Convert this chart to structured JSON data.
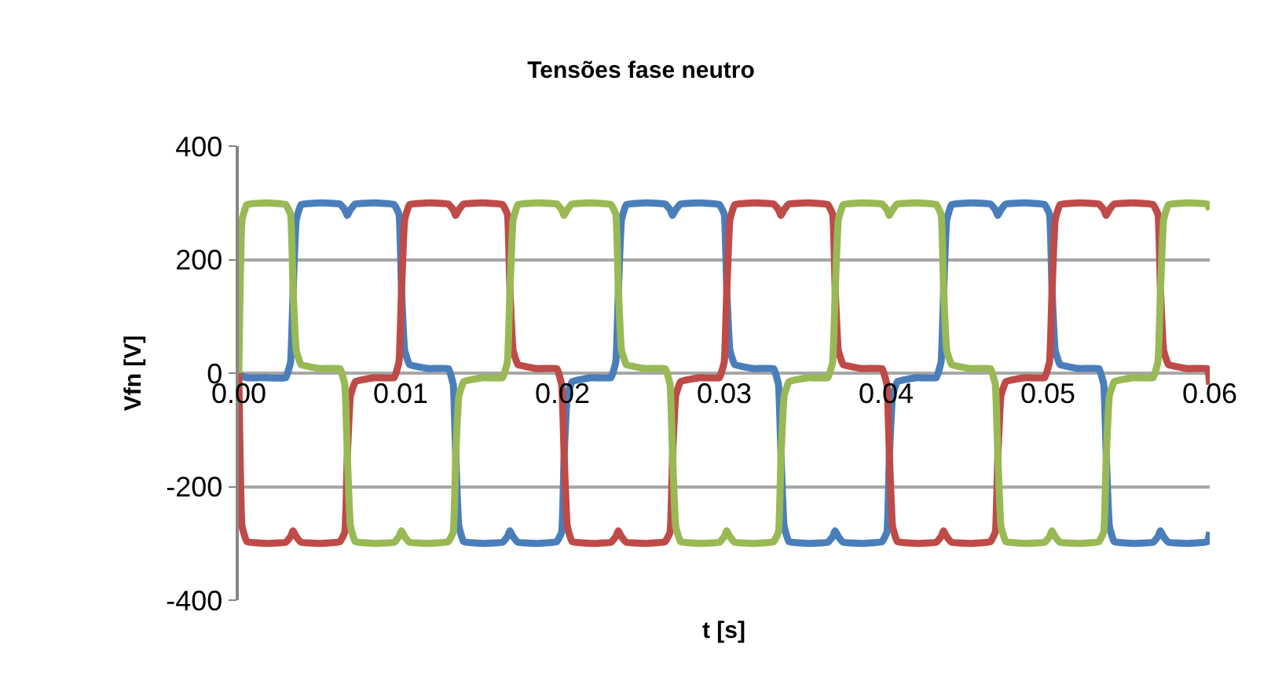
{
  "chart_data": {
    "type": "line",
    "title": "Tensões fase neutro",
    "xlabel": "t [s]",
    "ylabel": "Vfn [V]",
    "x": [
      0,
      0.0002,
      0.0005,
      0.0017,
      0.0029,
      0.0032,
      0.00335,
      0.00355,
      0.00385,
      0.00505,
      0.00625,
      0.00655,
      0.0067,
      0.0069,
      0.0072,
      0.0084,
      0.0096,
      0.0099,
      0.01005,
      0.01025,
      0.01055,
      0.01175,
      0.01295,
      0.01325,
      0.0134,
      0.0136,
      0.0139,
      0.0151,
      0.0163,
      0.0166,
      0.01675,
      0.01695,
      0.01725,
      0.01845,
      0.01965,
      0.01995,
      0.0201,
      0.0203,
      0.0206,
      0.0218,
      0.023,
      0.0233,
      0.02345,
      0.02365,
      0.02395,
      0.02515,
      0.02635,
      0.02665,
      0.0268,
      0.027,
      0.0273,
      0.0285,
      0.0297,
      0.03,
      0.03015,
      0.03035,
      0.03065,
      0.03185,
      0.03305,
      0.03335,
      0.0335,
      0.0337,
      0.034,
      0.0352,
      0.0364,
      0.0367,
      0.03685,
      0.03705,
      0.03735,
      0.03855,
      0.03975,
      0.04005,
      0.0402,
      0.0404,
      0.0407,
      0.0419,
      0.0431,
      0.0434,
      0.04355,
      0.04375,
      0.04405,
      0.04525,
      0.04645,
      0.04675,
      0.0469,
      0.0471,
      0.0474,
      0.0486,
      0.0498,
      0.0501,
      0.05025,
      0.05045,
      0.05075,
      0.05195,
      0.05315,
      0.05345,
      0.0536,
      0.0538,
      0.0541,
      0.0553,
      0.0565,
      0.0568,
      0.05695,
      0.05715,
      0.05745,
      0.05865,
      0.05985,
      0.06
    ],
    "series": [
      {
        "color": "#4a7ebb",
        "values": [
          0,
          -5,
          -8,
          -8,
          -8,
          20,
          140,
          270,
          297,
          300,
          298,
          288,
          278,
          288,
          298,
          300,
          297,
          280,
          150,
          40,
          15,
          8,
          8,
          -20,
          -140,
          -270,
          -297,
          -300,
          -298,
          -288,
          -278,
          -288,
          -298,
          -300,
          -297,
          -280,
          -150,
          -40,
          -15,
          -8,
          -8,
          20,
          140,
          270,
          297,
          300,
          298,
          288,
          278,
          288,
          298,
          300,
          297,
          280,
          150,
          40,
          15,
          8,
          8,
          -20,
          -140,
          -270,
          -297,
          -300,
          -298,
          -288,
          -278,
          -288,
          -298,
          -300,
          -297,
          -280,
          -150,
          -40,
          -15,
          -8,
          -8,
          20,
          140,
          270,
          297,
          300,
          298,
          288,
          278,
          288,
          298,
          300,
          297,
          280,
          150,
          40,
          15,
          8,
          8,
          -20,
          -140,
          -270,
          -297,
          -300,
          -298,
          -288,
          -278,
          -288,
          -298,
          -300,
          -297,
          -280
        ]
      },
      {
        "color": "#be4b48",
        "values": [
          0,
          -270,
          -297,
          -300,
          -298,
          -288,
          -278,
          -288,
          -298,
          -300,
          -297,
          -280,
          -150,
          -40,
          -15,
          -8,
          -8,
          20,
          140,
          270,
          297,
          300,
          298,
          288,
          278,
          288,
          298,
          300,
          297,
          280,
          150,
          40,
          15,
          8,
          8,
          -20,
          -140,
          -270,
          -297,
          -300,
          -298,
          -288,
          -278,
          -288,
          -298,
          -300,
          -297,
          -280,
          -150,
          -40,
          -15,
          -8,
          -8,
          20,
          140,
          270,
          297,
          300,
          298,
          288,
          278,
          288,
          298,
          300,
          297,
          280,
          150,
          40,
          15,
          8,
          8,
          -20,
          -140,
          -270,
          -297,
          -300,
          -298,
          -288,
          -278,
          -288,
          -298,
          -300,
          -297,
          -280,
          -150,
          -40,
          -15,
          -8,
          -8,
          20,
          140,
          270,
          297,
          300,
          298,
          288,
          278,
          288,
          298,
          300,
          297,
          280,
          150,
          40,
          15,
          8,
          8,
          -20
        ]
      },
      {
        "color": "#98b954",
        "values": [
          0,
          270,
          297,
          300,
          297,
          280,
          150,
          40,
          15,
          8,
          8,
          -20,
          -140,
          -270,
          -297,
          -300,
          -298,
          -288,
          -278,
          -288,
          -298,
          -300,
          -297,
          -280,
          -150,
          -40,
          -15,
          -8,
          -8,
          20,
          140,
          270,
          297,
          300,
          298,
          288,
          278,
          288,
          298,
          300,
          297,
          280,
          150,
          40,
          15,
          8,
          8,
          -20,
          -140,
          -270,
          -297,
          -300,
          -298,
          -288,
          -278,
          -288,
          -298,
          -300,
          -297,
          -280,
          -150,
          -40,
          -15,
          -8,
          -8,
          20,
          140,
          270,
          297,
          300,
          298,
          288,
          278,
          288,
          298,
          300,
          297,
          280,
          150,
          40,
          15,
          8,
          8,
          -20,
          -140,
          -270,
          -297,
          -300,
          -298,
          -288,
          -278,
          -288,
          -298,
          -300,
          -297,
          -280,
          -150,
          -40,
          -15,
          -8,
          -8,
          20,
          140,
          270,
          297,
          300,
          298,
          288
        ]
      }
    ],
    "xlim": [
      0,
      0.06
    ],
    "xticks": [
      {
        "value": 0,
        "label": "0.00"
      },
      0.01,
      0.02,
      0.03,
      0.04,
      0.05,
      0.06
    ],
    "ylim": [
      -400,
      400
    ],
    "yticks": [
      -400,
      -200,
      0,
      200,
      400
    ],
    "grid": "y",
    "marker": "none",
    "line_style": "solid"
  }
}
